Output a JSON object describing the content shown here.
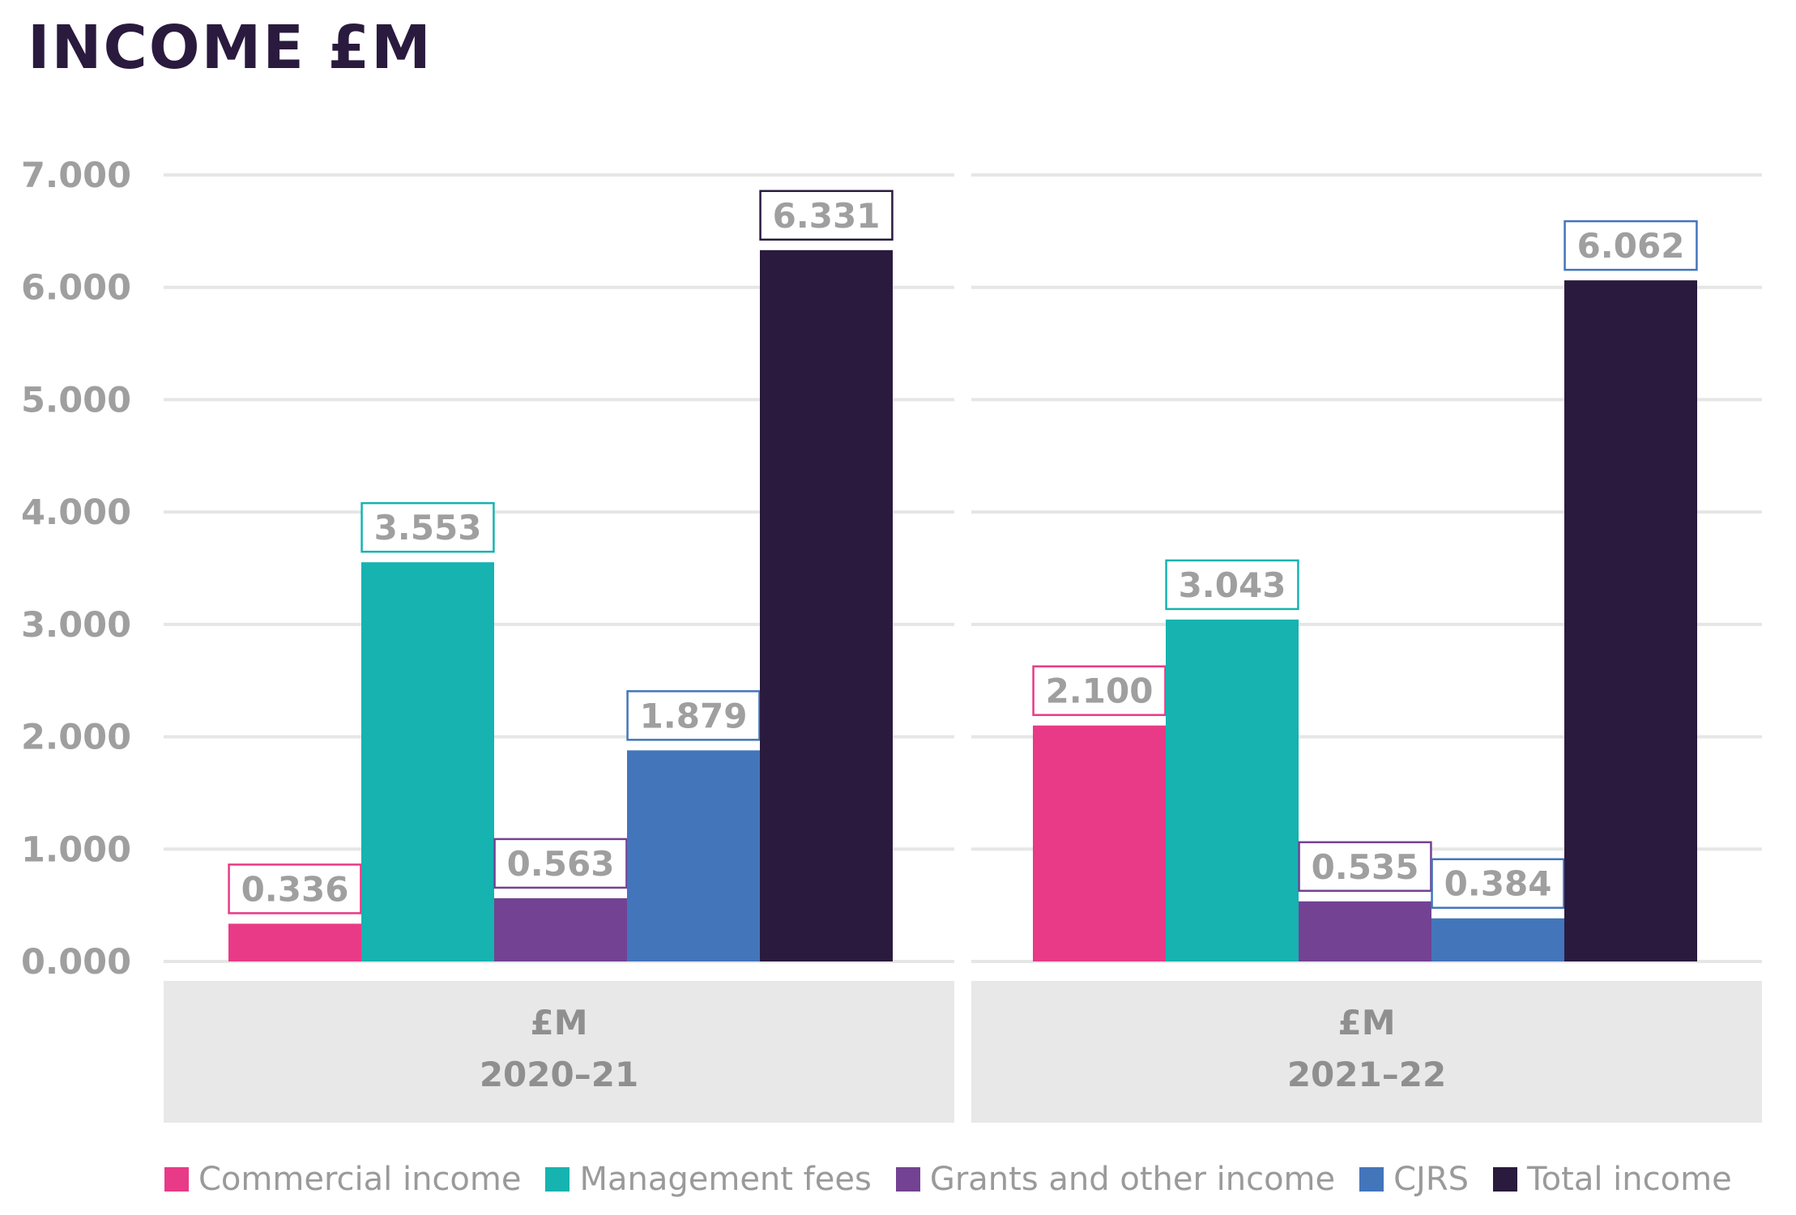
{
  "title": "INCOME £M",
  "chart_data": {
    "type": "bar",
    "title": "INCOME £M",
    "categories": [
      {
        "unit": "£M",
        "year": "2020–21"
      },
      {
        "unit": "£M",
        "year": "2021–22"
      }
    ],
    "series": [
      {
        "name": "Commercial income",
        "color": "#e83a86",
        "values": [
          0.336,
          2.1
        ],
        "labels": [
          "0.336",
          "2.100"
        ]
      },
      {
        "name": "Management fees",
        "color": "#16b3b0",
        "values": [
          3.553,
          3.043
        ],
        "labels": [
          "3.553",
          "3.043"
        ]
      },
      {
        "name": "Grants and other income",
        "color": "#734293",
        "values": [
          0.563,
          0.535
        ],
        "labels": [
          "0.563",
          "0.535"
        ]
      },
      {
        "name": "CJRS",
        "color": "#4375bb",
        "values": [
          1.879,
          0.384
        ],
        "labels": [
          "1.879",
          "0.384"
        ]
      },
      {
        "name": "Total income",
        "color": "#2a1a3e",
        "values": [
          6.331,
          6.062
        ],
        "labels": [
          "6.331",
          "6.062"
        ]
      }
    ],
    "label_border_colors": [
      [
        "#e83a86",
        "#e83a86"
      ],
      [
        "#16b3b0",
        "#16b3b0"
      ],
      [
        "#734293",
        "#734293"
      ],
      [
        "#4375bb",
        "#4375bb"
      ],
      [
        "#2a1a3e",
        "#4375bb"
      ]
    ],
    "yticks": [
      "0.000",
      "1.000",
      "2.000",
      "3.000",
      "4.000",
      "5.000",
      "6.000",
      "7.000"
    ],
    "ylim": [
      0,
      7
    ],
    "xlabel": "",
    "ylabel": "",
    "grid": true,
    "legend_position": "bottom"
  },
  "colors": {
    "title": "#2a1a3e",
    "grid": "#e6e6e6",
    "category_panel": "#e8e8e8",
    "tick_text": "#9f9f9f"
  }
}
